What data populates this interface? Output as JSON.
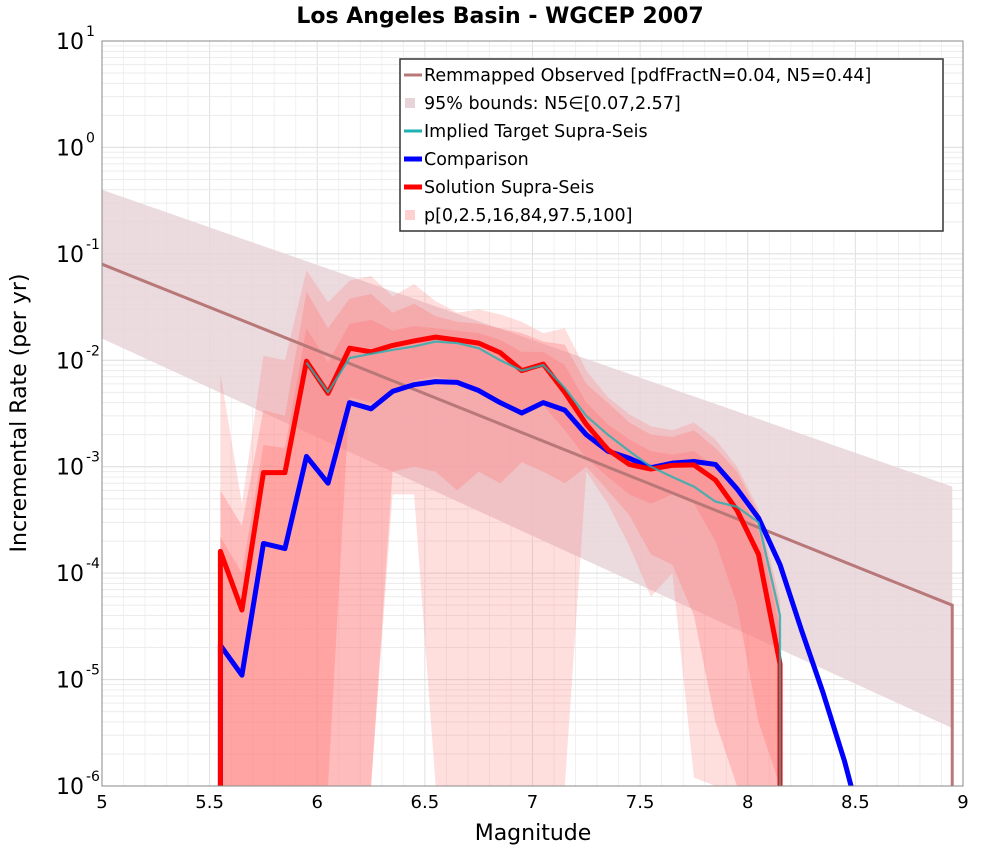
{
  "chart_data": {
    "type": "line",
    "title": "Los Angeles Basin - WGCEP 2007",
    "xlabel": "Magnitude",
    "ylabel": "Incremental Rate (per yr)",
    "xlim": [
      5,
      9
    ],
    "ylim": [
      1e-06,
      10
    ],
    "yscale": "log",
    "grid": true,
    "legend_position": "top-right",
    "x_ticks": [
      "5",
      "5.5",
      "6",
      "6.5",
      "7",
      "7.5",
      "8",
      "8.5",
      "9"
    ],
    "y_ticks": [
      {
        "base": "10",
        "exp": "-6"
      },
      {
        "base": "10",
        "exp": "-5"
      },
      {
        "base": "10",
        "exp": "-4"
      },
      {
        "base": "10",
        "exp": "-3"
      },
      {
        "base": "10",
        "exp": "-2"
      },
      {
        "base": "10",
        "exp": "-1"
      },
      {
        "base": "10",
        "exp": "0"
      },
      {
        "base": "10",
        "exp": "1"
      }
    ],
    "legend": [
      {
        "label": "Remmapped Observed [pdfFractN=0.04, N5=0.44]",
        "kind": "line",
        "color": "#b87878"
      },
      {
        "label": "95% bounds: N5∈[0.07,2.57]",
        "kind": "fill",
        "color": "#e8d4d8"
      },
      {
        "label": "Implied Target Supra-Seis",
        "kind": "line",
        "color": "#20b2b2"
      },
      {
        "label": "Comparison",
        "kind": "line",
        "color": "#0000ff"
      },
      {
        "label": "Solution Supra-Seis",
        "kind": "line",
        "color": "#ff0000"
      },
      {
        "label": "p[0,2.5,16,84,97.5,100]",
        "kind": "fill",
        "color": "#ffd0d0"
      }
    ],
    "observed": {
      "color": "#b87878",
      "x": [
        5.0,
        8.95,
        8.95
      ],
      "y": [
        0.08,
        5e-05,
        1e-06
      ]
    },
    "bounds_95": {
      "color": "#e8d4d8",
      "x": [
        5.0,
        8.95,
        8.95
      ],
      "upper": [
        0.4,
        0.00065,
        0.00065
      ],
      "lower": [
        0.016,
        3.5e-06,
        1e-06
      ]
    },
    "implied_target": {
      "color": "#20b2b2",
      "x": [
        5.95,
        6.05,
        6.15,
        6.25,
        6.35,
        6.45,
        6.55,
        6.65,
        6.75,
        6.85,
        6.95,
        7.05,
        7.15,
        7.25,
        7.35,
        7.45,
        7.55,
        7.65,
        7.75,
        7.85,
        7.95,
        8.05,
        8.15,
        8.15
      ],
      "y": [
        0.0095,
        0.005,
        0.0105,
        0.0115,
        0.0125,
        0.0135,
        0.015,
        0.0145,
        0.013,
        0.01,
        0.008,
        0.009,
        0.0055,
        0.003,
        0.002,
        0.0014,
        0.001,
        0.0008,
        0.00065,
        0.00047,
        0.00042,
        0.0003,
        4e-05,
        1e-06
      ]
    },
    "comparison": {
      "color": "#0000ff",
      "x": [
        5.55,
        5.55,
        5.65,
        5.75,
        5.85,
        5.95,
        6.05,
        6.15,
        6.25,
        6.35,
        6.45,
        6.55,
        6.65,
        6.75,
        6.85,
        6.95,
        7.05,
        7.15,
        7.25,
        7.35,
        7.45,
        7.55,
        7.65,
        7.75,
        7.85,
        7.95,
        8.05,
        8.15,
        8.25,
        8.35,
        8.45,
        8.48
      ],
      "y": [
        1e-06,
        2.1e-05,
        1.1e-05,
        0.00019,
        0.00017,
        0.00125,
        0.0007,
        0.004,
        0.0035,
        0.0051,
        0.0059,
        0.0063,
        0.0062,
        0.0052,
        0.004,
        0.0032,
        0.004,
        0.0034,
        0.002,
        0.0014,
        0.0012,
        0.00098,
        0.00108,
        0.00112,
        0.00105,
        0.00062,
        0.00033,
        0.00012,
        2.9e-05,
        7.5e-06,
        1.7e-06,
        1e-06
      ]
    },
    "solution": {
      "color": "#ff0000",
      "x": [
        5.55,
        5.55,
        5.65,
        5.75,
        5.85,
        5.95,
        6.05,
        6.15,
        6.25,
        6.35,
        6.45,
        6.55,
        6.65,
        6.75,
        6.85,
        6.95,
        7.05,
        7.15,
        7.25,
        7.35,
        7.45,
        7.55,
        7.65,
        7.75,
        7.85,
        7.95,
        8.05,
        8.15,
        8.15
      ],
      "y": [
        1e-06,
        0.00016,
        4.5e-05,
        0.00088,
        0.00088,
        0.0098,
        0.0049,
        0.013,
        0.012,
        0.0138,
        0.0152,
        0.0165,
        0.0155,
        0.0145,
        0.0118,
        0.008,
        0.0092,
        0.005,
        0.0025,
        0.00145,
        0.00105,
        0.00095,
        0.00103,
        0.00104,
        0.00075,
        0.00039,
        0.00015,
        1.4e-05,
        1e-06
      ]
    },
    "percentile_bands": {
      "color": "#ff8080",
      "x": [
        5.55,
        5.65,
        5.75,
        5.85,
        5.95,
        6.05,
        6.15,
        6.25,
        6.35,
        6.45,
        6.55,
        6.65,
        6.75,
        6.85,
        6.95,
        7.05,
        7.15,
        7.25,
        7.35,
        7.45,
        7.55,
        7.65,
        7.75,
        7.85,
        7.95,
        8.05,
        8.15
      ],
      "p0_100": {
        "upper": [
          0.0075,
          0.00045,
          0.011,
          0.01,
          0.07,
          0.035,
          0.056,
          0.062,
          0.04,
          0.052,
          0.036,
          0.028,
          0.03,
          0.027,
          0.023,
          0.018,
          0.02,
          0.008,
          0.0045,
          0.0031,
          0.0024,
          0.0022,
          0.0026,
          0.0018,
          0.001,
          0.0004,
          5.5e-05
        ],
        "lower": [
          1e-06,
          1e-06,
          1e-06,
          1e-06,
          1e-06,
          1e-06,
          1e-06,
          1e-06,
          0.00055,
          0.00055,
          1e-06,
          1e-06,
          1e-06,
          1e-06,
          1e-06,
          1e-06,
          1e-06,
          0.0009,
          0.00045,
          0.00018,
          6e-05,
          0.0001,
          1.2e-06,
          1e-06,
          1e-06,
          1e-06,
          1e-06
        ]
      },
      "p2_5_97_5": {
        "upper": [
          0.0006,
          0.00028,
          0.0034,
          0.003,
          0.044,
          0.02,
          0.038,
          0.042,
          0.028,
          0.034,
          0.026,
          0.023,
          0.022,
          0.02,
          0.018,
          0.015,
          0.014,
          0.006,
          0.004,
          0.0026,
          0.002,
          0.0019,
          0.0022,
          0.0015,
          0.0009,
          0.00036,
          4.5e-05
        ],
        "lower": [
          1e-06,
          1e-06,
          1e-06,
          1e-06,
          1e-06,
          1e-06,
          1e-06,
          1e-06,
          0.0009,
          0.001,
          0.0009,
          0.0006,
          0.0009,
          0.0007,
          0.0011,
          0.0009,
          0.0007,
          0.001,
          0.0006,
          0.00035,
          0.00015,
          0.00012,
          4e-05,
          4e-06,
          1e-06,
          1e-06,
          1e-06
        ]
      },
      "p16_84": {
        "upper": [
          0.00022,
          0.0001,
          0.0016,
          0.0015,
          0.02,
          0.0095,
          0.022,
          0.024,
          0.019,
          0.021,
          0.02,
          0.019,
          0.018,
          0.0155,
          0.012,
          0.012,
          0.009,
          0.004,
          0.0025,
          0.0018,
          0.0014,
          0.0013,
          0.0014,
          0.001,
          0.0006,
          0.00025,
          3e-05
        ],
        "lower": [
          1e-06,
          1e-06,
          1e-06,
          1e-06,
          1e-06,
          1e-06,
          0.0045,
          0.004,
          0.005,
          0.0065,
          0.007,
          0.0065,
          0.0055,
          0.004,
          0.003,
          0.0038,
          0.0022,
          0.0012,
          0.0008,
          0.00055,
          0.00045,
          0.00055,
          0.00045,
          0.0002,
          5e-05,
          4e-06,
          1e-06
        ]
      }
    }
  }
}
